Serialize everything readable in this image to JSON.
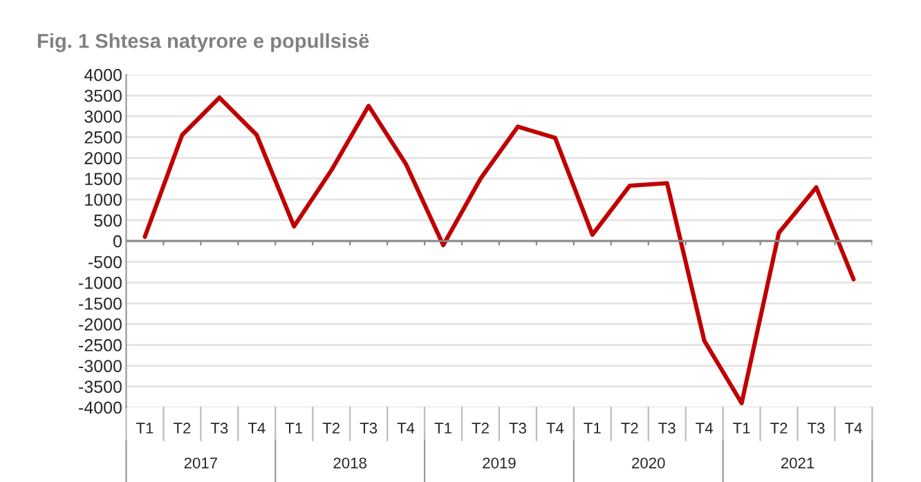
{
  "chart_data": {
    "type": "line",
    "title": "Fig. 1 Shtesa natyrore e popullsisë",
    "categories": [
      "T1",
      "T2",
      "T3",
      "T4",
      "T1",
      "T2",
      "T3",
      "T4",
      "T1",
      "T2",
      "T3",
      "T4",
      "T1",
      "T2",
      "T3",
      "T4",
      "T1",
      "T2",
      "T3",
      "T4"
    ],
    "series": [
      {
        "color": "#c00000",
        "values": [
          100,
          2550,
          3450,
          2550,
          350,
          1700,
          3250,
          1850,
          -100,
          1500,
          2750,
          2480,
          150,
          1330,
          1390,
          -2400,
          -3900,
          200,
          1290,
          -920
        ]
      }
    ],
    "annotations": [
      "2017",
      "2018",
      "2019",
      "2020",
      "2021"
    ],
    "ylim": [
      -4000,
      4000
    ],
    "yticks": [
      -4000,
      -3500,
      -3000,
      -2500,
      -2000,
      -1500,
      -1000,
      -500,
      0,
      500,
      1000,
      1500,
      2000,
      2500,
      3000,
      3500,
      4000
    ],
    "grid": "y",
    "legend": false,
    "marker": "none",
    "line_style": "solid"
  }
}
